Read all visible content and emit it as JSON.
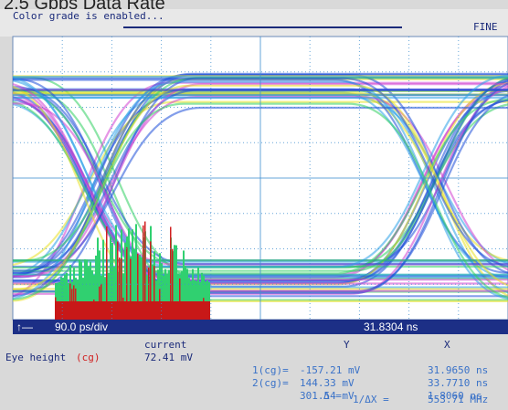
{
  "header": {
    "title": "2.5 Gbps Data Rate"
  },
  "status": {
    "message": "Color grade is enabled...",
    "mode": "FINE"
  },
  "timebase": {
    "scale": "90.0 ps/div",
    "position": "31.8304 ns"
  },
  "measurement": {
    "name": "Eye height",
    "source": "(cg)",
    "column": "current",
    "value": "72.41 mV"
  },
  "markers": {
    "y_header": "Y",
    "x_header": "X",
    "rows": [
      {
        "label": "1(cg)=",
        "y": "-157.21 mV",
        "x": "31.9650 ns"
      },
      {
        "label": "2(cg)=",
        "y": "144.33 mV",
        "x": "33.7710 ns"
      },
      {
        "label": "Δ =",
        "y": "301.54 mV",
        "x": "1.8060 ns"
      }
    ],
    "inverse": {
      "label": "1/ΔX =",
      "value": "553.71 MHz"
    }
  }
}
